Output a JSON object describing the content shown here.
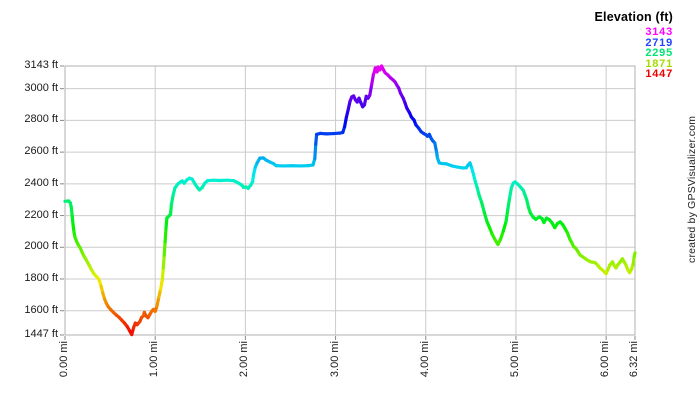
{
  "watermark": {
    "text": "created by GPSVisualizer.com"
  },
  "chart_data": {
    "type": "line",
    "title": "Elevation (ft)",
    "legend": {
      "title": "Elevation (ft)",
      "position": "top-right",
      "entries": [
        {
          "label": "3143",
          "color": "#ff00ff"
        },
        {
          "label": "2719",
          "color": "#2045ff"
        },
        {
          "label": "2295",
          "color": "#00e673"
        },
        {
          "label": "1871",
          "color": "#a3dd00"
        },
        {
          "label": "1447",
          "color": "#ee0000"
        }
      ]
    },
    "x_axis": {
      "unit": "mi",
      "min": 0,
      "max": 6.32,
      "ticks": [
        {
          "value": 0,
          "label": "0.00 mi"
        },
        {
          "value": 1,
          "label": "1.00 mi"
        },
        {
          "value": 2,
          "label": "2.00 mi"
        },
        {
          "value": 3,
          "label": "3.00 mi"
        },
        {
          "value": 4,
          "label": "4.00 mi"
        },
        {
          "value": 5,
          "label": "5.00 mi"
        },
        {
          "value": 6,
          "label": "6.00 mi"
        },
        {
          "value": 6.32,
          "label": "6.32 mi"
        }
      ]
    },
    "y_axis": {
      "unit": "ft",
      "min": 1447,
      "max": 3143,
      "ticks": [
        {
          "value": 3143,
          "label": "3143 ft"
        },
        {
          "value": 3000,
          "label": "3000 ft"
        },
        {
          "value": 2800,
          "label": "2800 ft"
        },
        {
          "value": 2600,
          "label": "2600 ft"
        },
        {
          "value": 2400,
          "label": "2400 ft"
        },
        {
          "value": 2200,
          "label": "2200 ft"
        },
        {
          "value": 2000,
          "label": "2000 ft"
        },
        {
          "value": 1800,
          "label": "1800 ft"
        },
        {
          "value": 1600,
          "label": "1600 ft"
        },
        {
          "value": 1447,
          "label": "1447 ft"
        }
      ]
    },
    "style": {
      "grid_color": "#cbcbcb",
      "border_color": "#b0b0b0",
      "tick_color": "#888888",
      "line_width": 3.2,
      "color_mode": "elevation-rainbow-hue-0-to-300"
    },
    "series": [
      {
        "name": "elevation-profile",
        "points": [
          [
            0.0,
            2290
          ],
          [
            0.04,
            2292
          ],
          [
            0.06,
            2280
          ],
          [
            0.07,
            2250
          ],
          [
            0.08,
            2195
          ],
          [
            0.09,
            2140
          ],
          [
            0.1,
            2095
          ],
          [
            0.11,
            2065
          ],
          [
            0.13,
            2035
          ],
          [
            0.15,
            2012
          ],
          [
            0.17,
            1995
          ],
          [
            0.19,
            1968
          ],
          [
            0.21,
            1945
          ],
          [
            0.23,
            1926
          ],
          [
            0.25,
            1905
          ],
          [
            0.27,
            1885
          ],
          [
            0.29,
            1862
          ],
          [
            0.31,
            1843
          ],
          [
            0.33,
            1826
          ],
          [
            0.36,
            1810
          ],
          [
            0.38,
            1792
          ],
          [
            0.4,
            1755
          ],
          [
            0.42,
            1710
          ],
          [
            0.44,
            1672
          ],
          [
            0.46,
            1645
          ],
          [
            0.48,
            1625
          ],
          [
            0.51,
            1605
          ],
          [
            0.54,
            1588
          ],
          [
            0.57,
            1572
          ],
          [
            0.6,
            1558
          ],
          [
            0.63,
            1540
          ],
          [
            0.66,
            1522
          ],
          [
            0.69,
            1500
          ],
          [
            0.72,
            1470
          ],
          [
            0.74,
            1450
          ],
          [
            0.76,
            1492
          ],
          [
            0.78,
            1522
          ],
          [
            0.8,
            1512
          ],
          [
            0.83,
            1532
          ],
          [
            0.85,
            1558
          ],
          [
            0.87,
            1568
          ],
          [
            0.88,
            1590
          ],
          [
            0.9,
            1566
          ],
          [
            0.92,
            1556
          ],
          [
            0.94,
            1576
          ],
          [
            0.96,
            1596
          ],
          [
            0.98,
            1608
          ],
          [
            1.0,
            1596
          ],
          [
            1.02,
            1630
          ],
          [
            1.04,
            1685
          ],
          [
            1.06,
            1735
          ],
          [
            1.08,
            1800
          ],
          [
            1.09,
            1870
          ],
          [
            1.1,
            1950
          ],
          [
            1.11,
            2035
          ],
          [
            1.12,
            2120
          ],
          [
            1.13,
            2185
          ],
          [
            1.15,
            2195
          ],
          [
            1.17,
            2208
          ],
          [
            1.18,
            2270
          ],
          [
            1.2,
            2332
          ],
          [
            1.22,
            2375
          ],
          [
            1.25,
            2398
          ],
          [
            1.28,
            2412
          ],
          [
            1.3,
            2418
          ],
          [
            1.32,
            2404
          ],
          [
            1.35,
            2424
          ],
          [
            1.38,
            2436
          ],
          [
            1.41,
            2430
          ],
          [
            1.44,
            2400
          ],
          [
            1.47,
            2376
          ],
          [
            1.49,
            2362
          ],
          [
            1.52,
            2376
          ],
          [
            1.55,
            2404
          ],
          [
            1.58,
            2420
          ],
          [
            1.65,
            2423
          ],
          [
            1.72,
            2421
          ],
          [
            1.8,
            2423
          ],
          [
            1.87,
            2420
          ],
          [
            1.92,
            2406
          ],
          [
            1.96,
            2392
          ],
          [
            1.98,
            2378
          ],
          [
            2.01,
            2380
          ],
          [
            2.03,
            2372
          ],
          [
            2.06,
            2392
          ],
          [
            2.08,
            2414
          ],
          [
            2.09,
            2455
          ],
          [
            2.11,
            2505
          ],
          [
            2.13,
            2532
          ],
          [
            2.16,
            2562
          ],
          [
            2.2,
            2563
          ],
          [
            2.23,
            2550
          ],
          [
            2.27,
            2538
          ],
          [
            2.31,
            2528
          ],
          [
            2.34,
            2515
          ],
          [
            2.42,
            2513
          ],
          [
            2.52,
            2514
          ],
          [
            2.62,
            2513
          ],
          [
            2.7,
            2515
          ],
          [
            2.75,
            2519
          ],
          [
            2.77,
            2560
          ],
          [
            2.78,
            2650
          ],
          [
            2.79,
            2712
          ],
          [
            2.83,
            2718
          ],
          [
            2.9,
            2715
          ],
          [
            2.98,
            2717
          ],
          [
            3.05,
            2720
          ],
          [
            3.08,
            2724
          ],
          [
            3.1,
            2760
          ],
          [
            3.12,
            2820
          ],
          [
            3.14,
            2868
          ],
          [
            3.16,
            2920
          ],
          [
            3.18,
            2948
          ],
          [
            3.2,
            2954
          ],
          [
            3.22,
            2930
          ],
          [
            3.24,
            2916
          ],
          [
            3.26,
            2940
          ],
          [
            3.28,
            2912
          ],
          [
            3.3,
            2886
          ],
          [
            3.32,
            2898
          ],
          [
            3.34,
            2952
          ],
          [
            3.36,
            2940
          ],
          [
            3.38,
            2960
          ],
          [
            3.4,
            3025
          ],
          [
            3.42,
            3090
          ],
          [
            3.43,
            3105
          ],
          [
            3.44,
            3130
          ],
          [
            3.46,
            3106
          ],
          [
            3.47,
            3137
          ],
          [
            3.49,
            3118
          ],
          [
            3.51,
            3143
          ],
          [
            3.53,
            3120
          ],
          [
            3.55,
            3100
          ],
          [
            3.58,
            3086
          ],
          [
            3.61,
            3068
          ],
          [
            3.64,
            3054
          ],
          [
            3.66,
            3042
          ],
          [
            3.68,
            3022
          ],
          [
            3.7,
            3004
          ],
          [
            3.72,
            2972
          ],
          [
            3.75,
            2940
          ],
          [
            3.77,
            2910
          ],
          [
            3.79,
            2878
          ],
          [
            3.82,
            2848
          ],
          [
            3.84,
            2822
          ],
          [
            3.87,
            2802
          ],
          [
            3.89,
            2772
          ],
          [
            3.92,
            2752
          ],
          [
            3.95,
            2728
          ],
          [
            3.98,
            2716
          ],
          [
            4.0,
            2710
          ],
          [
            4.02,
            2700
          ],
          [
            4.04,
            2712
          ],
          [
            4.06,
            2686
          ],
          [
            4.08,
            2670
          ],
          [
            4.1,
            2658
          ],
          [
            4.12,
            2600
          ],
          [
            4.13,
            2562
          ],
          [
            4.15,
            2532
          ],
          [
            4.18,
            2528
          ],
          [
            4.23,
            2526
          ],
          [
            4.29,
            2513
          ],
          [
            4.35,
            2506
          ],
          [
            4.41,
            2500
          ],
          [
            4.45,
            2502
          ],
          [
            4.47,
            2519
          ],
          [
            4.49,
            2532
          ],
          [
            4.51,
            2500
          ],
          [
            4.53,
            2458
          ],
          [
            4.55,
            2412
          ],
          [
            4.57,
            2376
          ],
          [
            4.59,
            2332
          ],
          [
            4.62,
            2282
          ],
          [
            4.65,
            2218
          ],
          [
            4.68,
            2160
          ],
          [
            4.71,
            2120
          ],
          [
            4.74,
            2078
          ],
          [
            4.77,
            2046
          ],
          [
            4.8,
            2018
          ],
          [
            4.83,
            2052
          ],
          [
            4.86,
            2102
          ],
          [
            4.89,
            2162
          ],
          [
            4.91,
            2240
          ],
          [
            4.93,
            2312
          ],
          [
            4.95,
            2376
          ],
          [
            4.97,
            2404
          ],
          [
            4.99,
            2412
          ],
          [
            5.02,
            2398
          ],
          [
            5.05,
            2380
          ],
          [
            5.08,
            2360
          ],
          [
            5.1,
            2330
          ],
          [
            5.12,
            2298
          ],
          [
            5.14,
            2250
          ],
          [
            5.16,
            2217
          ],
          [
            5.19,
            2190
          ],
          [
            5.22,
            2176
          ],
          [
            5.26,
            2192
          ],
          [
            5.29,
            2180
          ],
          [
            5.31,
            2156
          ],
          [
            5.34,
            2184
          ],
          [
            5.37,
            2174
          ],
          [
            5.4,
            2154
          ],
          [
            5.43,
            2124
          ],
          [
            5.46,
            2150
          ],
          [
            5.49,
            2160
          ],
          [
            5.52,
            2142
          ],
          [
            5.54,
            2122
          ],
          [
            5.57,
            2092
          ],
          [
            5.6,
            2048
          ],
          [
            5.62,
            2028
          ],
          [
            5.64,
            2004
          ],
          [
            5.66,
            1996
          ],
          [
            5.69,
            1970
          ],
          [
            5.71,
            1952
          ],
          [
            5.74,
            1940
          ],
          [
            5.77,
            1928
          ],
          [
            5.8,
            1916
          ],
          [
            5.83,
            1908
          ],
          [
            5.86,
            1905
          ],
          [
            5.88,
            1902
          ],
          [
            5.91,
            1884
          ],
          [
            5.93,
            1870
          ],
          [
            5.96,
            1856
          ],
          [
            5.99,
            1840
          ],
          [
            6.0,
            1834
          ],
          [
            6.02,
            1860
          ],
          [
            6.04,
            1888
          ],
          [
            6.07,
            1908
          ],
          [
            6.09,
            1884
          ],
          [
            6.11,
            1870
          ],
          [
            6.13,
            1890
          ],
          [
            6.16,
            1910
          ],
          [
            6.18,
            1927
          ],
          [
            6.2,
            1908
          ],
          [
            6.22,
            1888
          ],
          [
            6.24,
            1858
          ],
          [
            6.26,
            1840
          ],
          [
            6.28,
            1860
          ],
          [
            6.3,
            1895
          ],
          [
            6.31,
            1938
          ],
          [
            6.32,
            1965
          ]
        ]
      }
    ]
  }
}
